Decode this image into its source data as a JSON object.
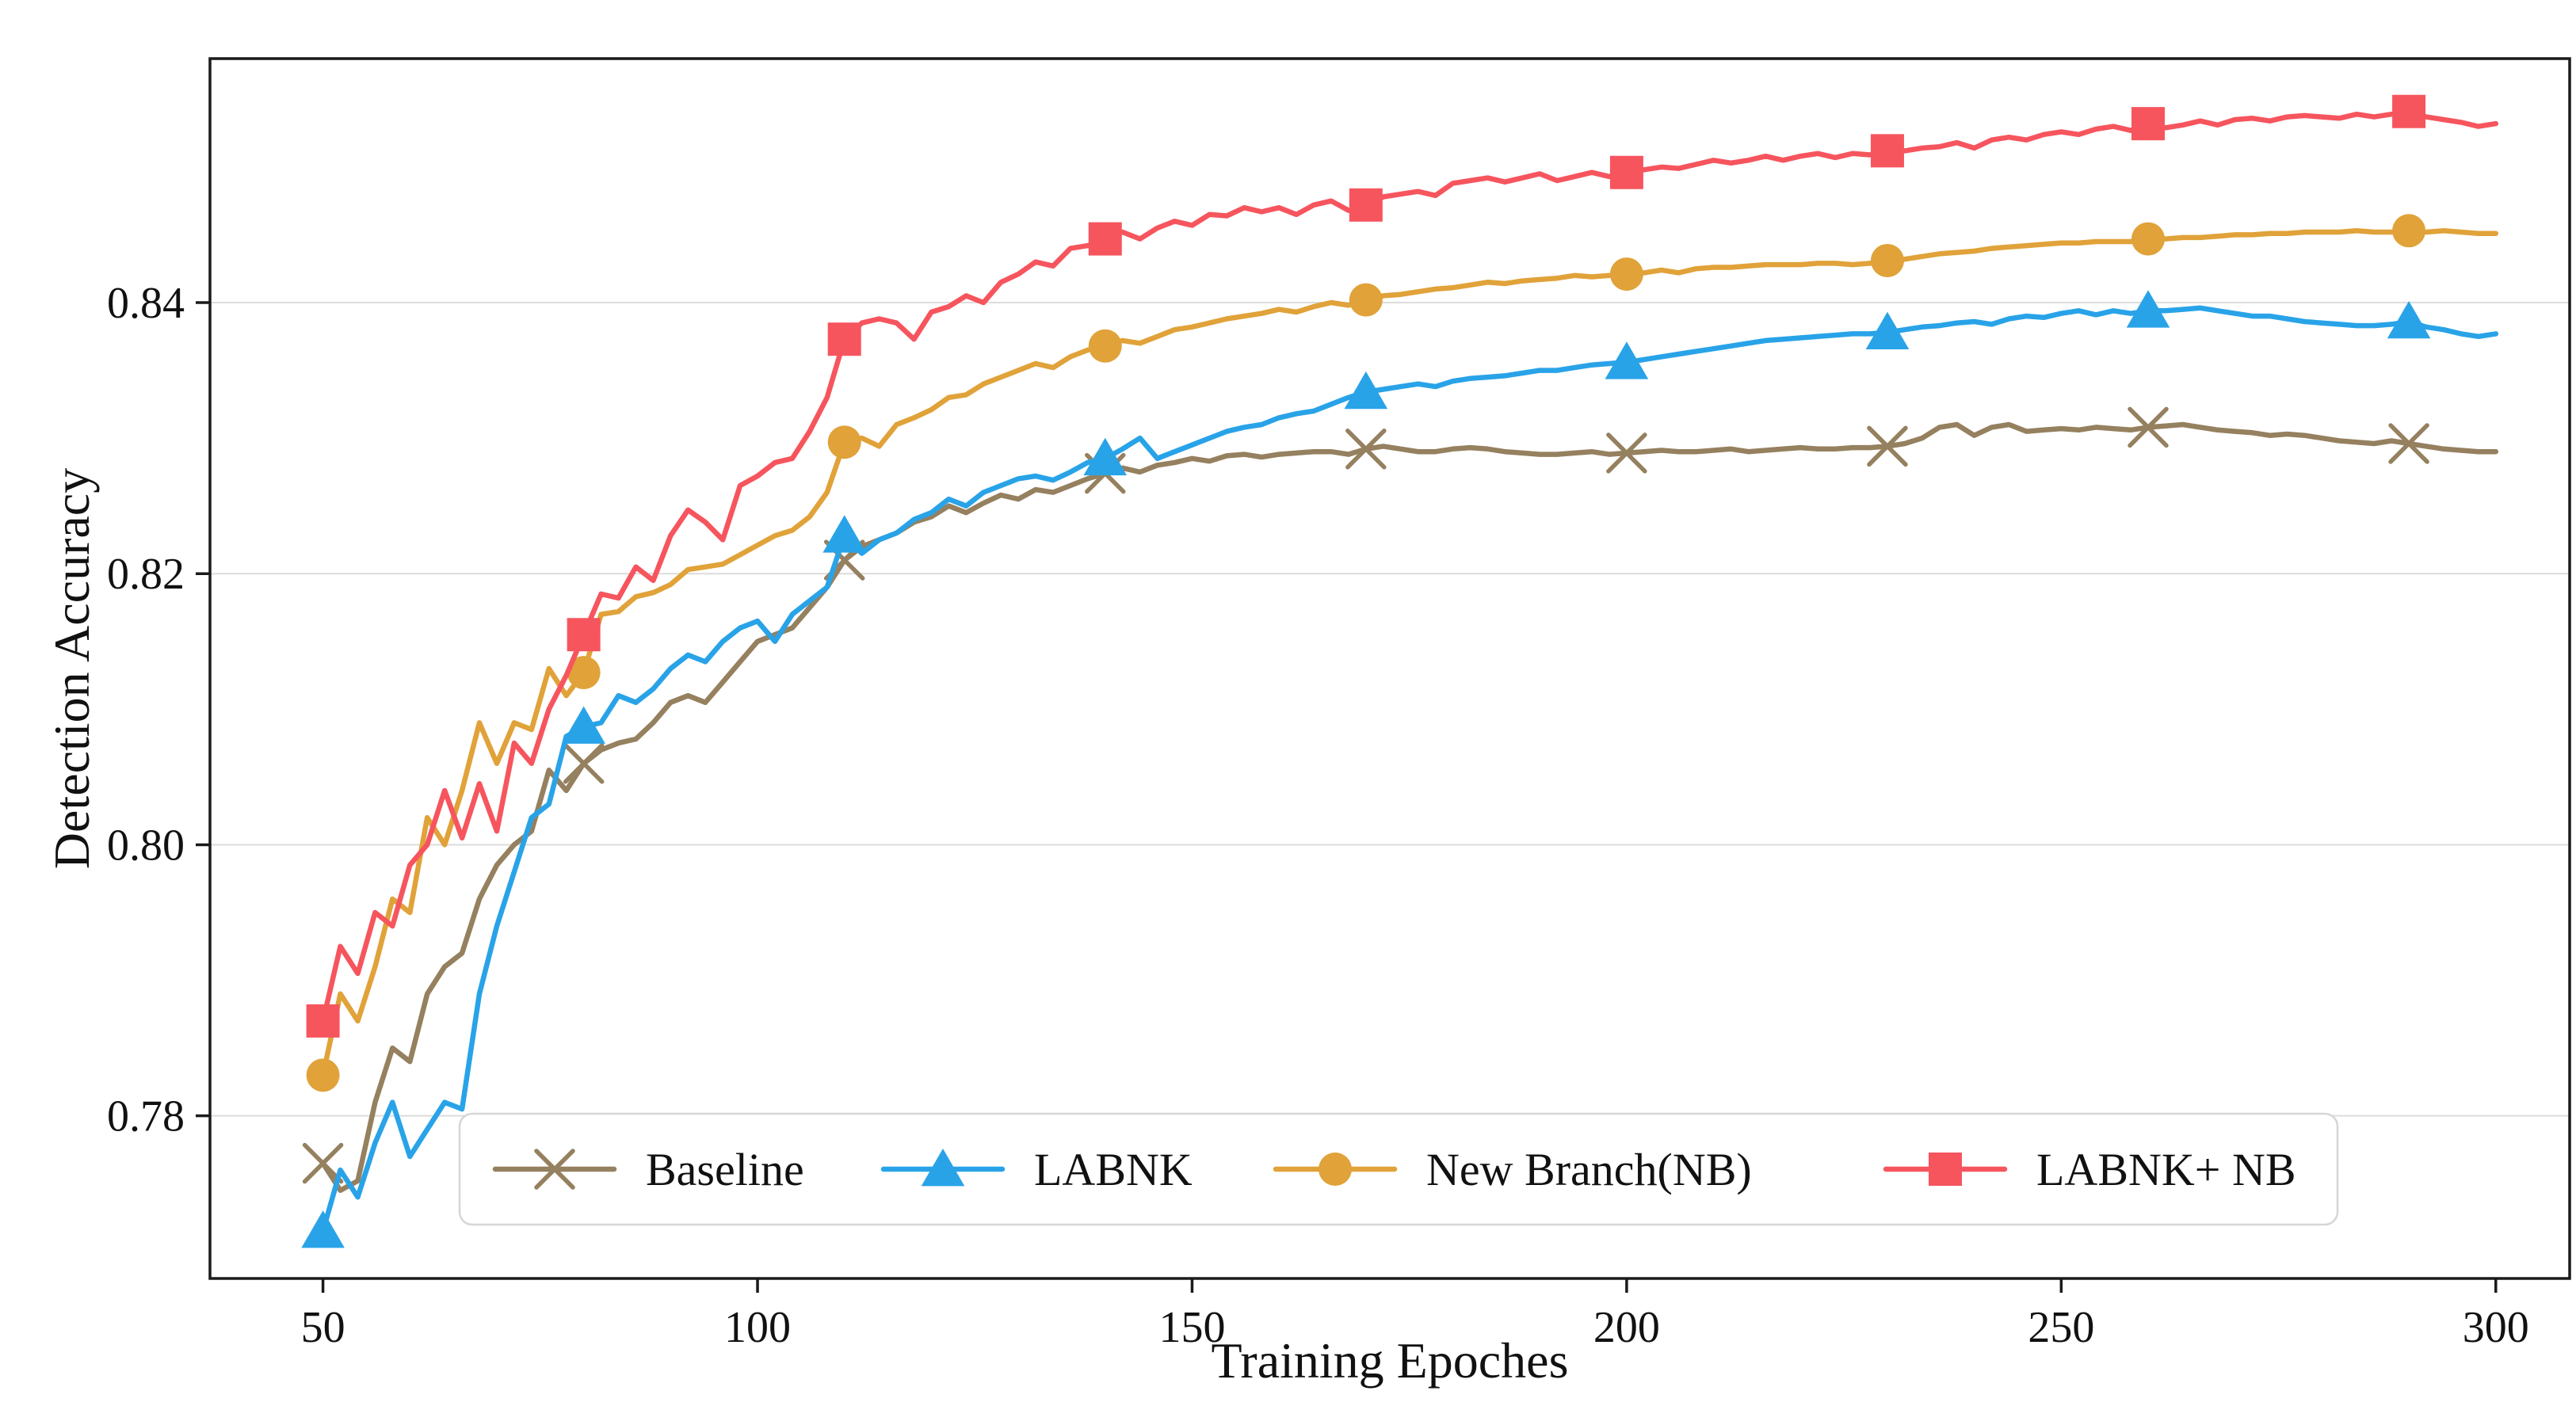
{
  "page": {
    "background": "#ffffff"
  },
  "chart_data": {
    "type": "line",
    "title": "",
    "xlabel": "Training Epoches",
    "ylabel": "Detection Accuracy",
    "xlim": [
      37,
      308.5
    ],
    "ylim": [
      0.768,
      0.858
    ],
    "x_ticks": [
      50,
      100,
      150,
      200,
      250,
      300
    ],
    "x_tick_labels": [
      "50",
      "100",
      "150",
      "200",
      "250",
      "300"
    ],
    "y_ticks": [
      0.78,
      0.8,
      0.82,
      0.84
    ],
    "y_tick_labels": [
      "0.78",
      "0.80",
      "0.82",
      "0.84"
    ],
    "grid": {
      "horizontal": true,
      "vertical": false,
      "color": "#dcdcdc"
    },
    "axis_color": "#1a1a1a",
    "legend_position": "bottom-left-inside",
    "x_start": 50,
    "x_step": 2,
    "marker_every": 15,
    "series": [
      {
        "name": "Baseline",
        "color": "#95805F",
        "marker": "x",
        "values": [
          0.7765,
          0.7745,
          0.7752,
          0.781,
          0.785,
          0.784,
          0.789,
          0.791,
          0.792,
          0.796,
          0.7985,
          0.8,
          0.801,
          0.8055,
          0.804,
          0.806,
          0.807,
          0.8075,
          0.8078,
          0.809,
          0.8105,
          0.811,
          0.8105,
          0.812,
          0.8135,
          0.815,
          0.8155,
          0.816,
          0.8175,
          0.819,
          0.821,
          0.822,
          0.8225,
          0.823,
          0.8238,
          0.8242,
          0.825,
          0.8245,
          0.8252,
          0.8258,
          0.8255,
          0.8262,
          0.826,
          0.8265,
          0.827,
          0.8274,
          0.8278,
          0.8275,
          0.828,
          0.8282,
          0.8285,
          0.8283,
          0.8287,
          0.8288,
          0.8286,
          0.8288,
          0.8289,
          0.829,
          0.829,
          0.8288,
          0.8292,
          0.8294,
          0.8292,
          0.829,
          0.829,
          0.8292,
          0.8293,
          0.8292,
          0.829,
          0.8289,
          0.8288,
          0.8288,
          0.8289,
          0.829,
          0.8288,
          0.8289,
          0.829,
          0.8291,
          0.829,
          0.829,
          0.8291,
          0.8292,
          0.829,
          0.8291,
          0.8292,
          0.8293,
          0.8292,
          0.8292,
          0.8293,
          0.8293,
          0.8294,
          0.8296,
          0.83,
          0.8308,
          0.831,
          0.8302,
          0.8308,
          0.831,
          0.8305,
          0.8306,
          0.8307,
          0.8306,
          0.8308,
          0.8307,
          0.8306,
          0.8308,
          0.8309,
          0.831,
          0.8308,
          0.8306,
          0.8305,
          0.8304,
          0.8302,
          0.8303,
          0.8302,
          0.83,
          0.8298,
          0.8297,
          0.8296,
          0.8298,
          0.8296,
          0.8294,
          0.8292,
          0.8291,
          0.829,
          0.829
        ]
      },
      {
        "name": "LABNK",
        "color": "#29A3E8",
        "marker": "triangle",
        "values": [
          0.7715,
          0.776,
          0.774,
          0.778,
          0.781,
          0.777,
          0.779,
          0.781,
          0.7805,
          0.789,
          0.794,
          0.798,
          0.802,
          0.803,
          0.808,
          0.8087,
          0.809,
          0.811,
          0.8105,
          0.8115,
          0.813,
          0.814,
          0.8135,
          0.815,
          0.816,
          0.8165,
          0.815,
          0.817,
          0.818,
          0.819,
          0.8228,
          0.8215,
          0.8225,
          0.823,
          0.824,
          0.8245,
          0.8255,
          0.825,
          0.826,
          0.8265,
          0.827,
          0.8272,
          0.8269,
          0.8275,
          0.8282,
          0.8285,
          0.8292,
          0.83,
          0.8285,
          0.829,
          0.8295,
          0.83,
          0.8305,
          0.8308,
          0.831,
          0.8315,
          0.8318,
          0.832,
          0.8325,
          0.833,
          0.8334,
          0.8336,
          0.8338,
          0.834,
          0.8338,
          0.8342,
          0.8344,
          0.8345,
          0.8346,
          0.8348,
          0.835,
          0.835,
          0.8352,
          0.8354,
          0.8355,
          0.8356,
          0.8358,
          0.836,
          0.8362,
          0.8364,
          0.8366,
          0.8368,
          0.837,
          0.8372,
          0.8373,
          0.8374,
          0.8375,
          0.8376,
          0.8377,
          0.8377,
          0.8378,
          0.838,
          0.8382,
          0.8383,
          0.8385,
          0.8386,
          0.8384,
          0.8388,
          0.839,
          0.8389,
          0.8392,
          0.8394,
          0.8391,
          0.8394,
          0.8392,
          0.8394,
          0.8394,
          0.8395,
          0.8396,
          0.8394,
          0.8392,
          0.839,
          0.839,
          0.8388,
          0.8386,
          0.8385,
          0.8384,
          0.8383,
          0.8383,
          0.8384,
          0.8386,
          0.8382,
          0.838,
          0.8377,
          0.8375,
          0.8377
        ]
      },
      {
        "name": "New Branch(NB)",
        "color": "#E0A239",
        "marker": "circle",
        "values": [
          0.783,
          0.789,
          0.787,
          0.791,
          0.796,
          0.795,
          0.802,
          0.8,
          0.804,
          0.809,
          0.806,
          0.809,
          0.8085,
          0.813,
          0.811,
          0.8127,
          0.817,
          0.8172,
          0.8183,
          0.8186,
          0.8192,
          0.8203,
          0.8205,
          0.8207,
          0.8214,
          0.8221,
          0.8228,
          0.8232,
          0.8242,
          0.826,
          0.8297,
          0.83,
          0.8294,
          0.831,
          0.8315,
          0.8321,
          0.833,
          0.8332,
          0.834,
          0.8345,
          0.835,
          0.8355,
          0.8352,
          0.836,
          0.8365,
          0.8368,
          0.8372,
          0.837,
          0.8375,
          0.838,
          0.8382,
          0.8385,
          0.8388,
          0.839,
          0.8392,
          0.8395,
          0.8393,
          0.8397,
          0.84,
          0.8398,
          0.8402,
          0.8405,
          0.8406,
          0.8408,
          0.841,
          0.8411,
          0.8413,
          0.8415,
          0.8414,
          0.8416,
          0.8417,
          0.8418,
          0.842,
          0.8419,
          0.842,
          0.8421,
          0.8422,
          0.8424,
          0.8422,
          0.8425,
          0.8426,
          0.8426,
          0.8427,
          0.8428,
          0.8428,
          0.8428,
          0.8429,
          0.8429,
          0.8428,
          0.8429,
          0.8431,
          0.8432,
          0.8434,
          0.8436,
          0.8437,
          0.8438,
          0.844,
          0.8441,
          0.8442,
          0.8443,
          0.8444,
          0.8444,
          0.8445,
          0.8445,
          0.8445,
          0.8447,
          0.8447,
          0.8448,
          0.8448,
          0.8449,
          0.845,
          0.845,
          0.8451,
          0.8451,
          0.8452,
          0.8452,
          0.8452,
          0.8453,
          0.8452,
          0.8452,
          0.8453,
          0.8452,
          0.8453,
          0.8452,
          0.8451,
          0.8451
        ]
      },
      {
        "name": "LABNK+ NB",
        "color": "#F6555E",
        "marker": "square",
        "values": [
          0.787,
          0.7925,
          0.7905,
          0.795,
          0.794,
          0.7985,
          0.8,
          0.804,
          0.8005,
          0.8045,
          0.801,
          0.8075,
          0.806,
          0.81,
          0.8125,
          0.8155,
          0.8185,
          0.8182,
          0.8205,
          0.8195,
          0.8228,
          0.8247,
          0.8238,
          0.8225,
          0.8265,
          0.8272,
          0.8282,
          0.8285,
          0.8305,
          0.833,
          0.8373,
          0.8385,
          0.8388,
          0.8385,
          0.8373,
          0.8393,
          0.8397,
          0.8405,
          0.84,
          0.8415,
          0.8421,
          0.843,
          0.8427,
          0.844,
          0.8442,
          0.8447,
          0.8452,
          0.8447,
          0.8455,
          0.846,
          0.8457,
          0.8465,
          0.8464,
          0.847,
          0.8467,
          0.847,
          0.8465,
          0.8472,
          0.8475,
          0.8468,
          0.8472,
          0.8478,
          0.848,
          0.8482,
          0.8479,
          0.8488,
          0.849,
          0.8492,
          0.8489,
          0.8492,
          0.8495,
          0.849,
          0.8493,
          0.8496,
          0.8493,
          0.8496,
          0.8498,
          0.85,
          0.8499,
          0.8502,
          0.8505,
          0.8503,
          0.8505,
          0.8508,
          0.8505,
          0.8508,
          0.851,
          0.8507,
          0.851,
          0.8509,
          0.8512,
          0.8512,
          0.8514,
          0.8515,
          0.8518,
          0.8514,
          0.852,
          0.8522,
          0.852,
          0.8524,
          0.8526,
          0.8524,
          0.8528,
          0.853,
          0.8527,
          0.8532,
          0.8529,
          0.8531,
          0.8534,
          0.8531,
          0.8535,
          0.8536,
          0.8534,
          0.8537,
          0.8538,
          0.8537,
          0.8536,
          0.8539,
          0.8537,
          0.8539,
          0.8541,
          0.8537,
          0.8535,
          0.8533,
          0.853,
          0.8532
        ]
      }
    ]
  }
}
